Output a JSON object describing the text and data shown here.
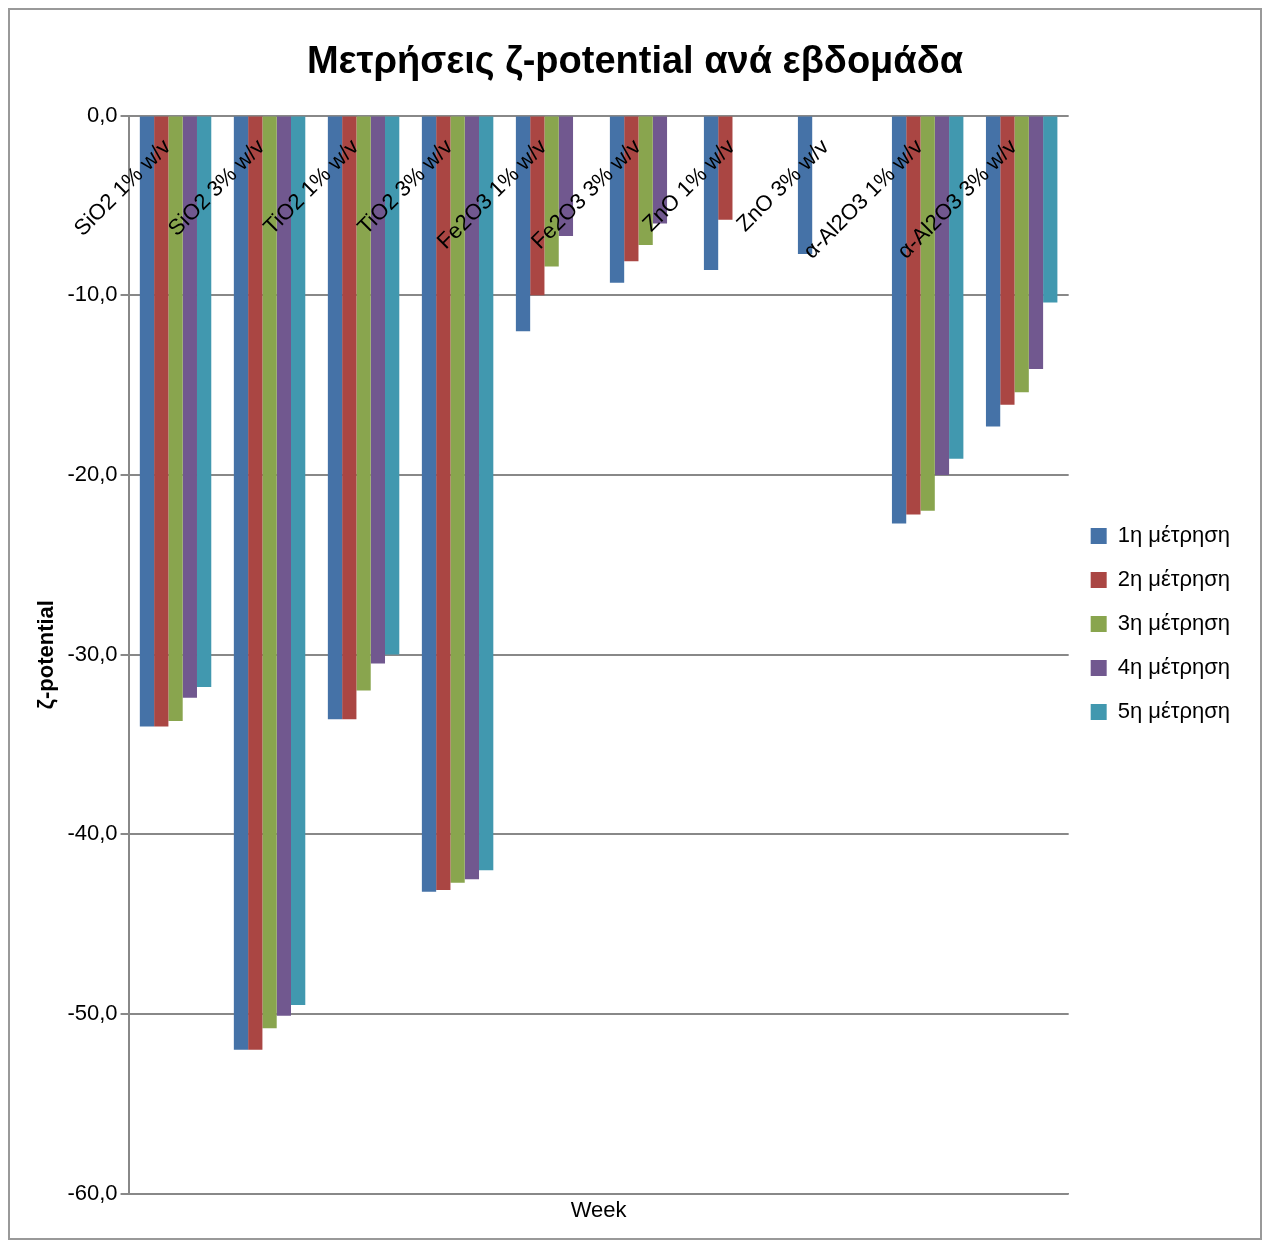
{
  "chart_data": {
    "type": "bar",
    "title": "Μετρήσεις ζ-potential ανά εβδομάδα",
    "xlabel": "Week",
    "ylabel": "ζ-potential",
    "categories": [
      "SiO2 1% w/v",
      "SiO2 3% w/v",
      "TiO2 1% w/v",
      "TiO2 3% w/v",
      "Fe2O3 1% w/v",
      "Fe2O3 3% w/v",
      "ZnO 1% w/v",
      "ZnO 3% w/v",
      "α-Al2O3 1% w/v",
      "α-Al2O3 3% w/v"
    ],
    "series": [
      {
        "name": "1η μέτρηση",
        "color": "#4572a7",
        "values": [
          -34.0,
          -52.0,
          -33.6,
          -43.2,
          -12.0,
          -9.3,
          -8.6,
          -7.7,
          -22.7,
          -17.3
        ]
      },
      {
        "name": "2η μέτρηση",
        "color": "#aa4643",
        "values": [
          -34.0,
          -52.0,
          -33.6,
          -43.1,
          -10.0,
          -8.1,
          -5.8,
          null,
          -22.2,
          -16.1
        ]
      },
      {
        "name": "3η μέτρηση",
        "color": "#89a54e",
        "values": [
          -33.7,
          -50.8,
          -32.0,
          -42.7,
          -8.4,
          -7.2,
          null,
          null,
          -22.0,
          -15.4
        ]
      },
      {
        "name": "4η μέτρηση",
        "color": "#71588f",
        "values": [
          -32.4,
          -50.1,
          -30.5,
          -42.5,
          -6.7,
          -6.0,
          null,
          null,
          -20.0,
          -14.1
        ]
      },
      {
        "name": "5η μέτρηση",
        "color": "#4198af",
        "values": [
          -31.8,
          -49.5,
          -30.0,
          -42.0,
          null,
          null,
          null,
          null,
          -19.1,
          -10.4
        ]
      }
    ],
    "ylim": [
      -60,
      0
    ],
    "yticks": [
      {
        "value": 0,
        "label": "0,0"
      },
      {
        "value": -10,
        "label": "-10,0"
      },
      {
        "value": -20,
        "label": "-20,0"
      },
      {
        "value": -30,
        "label": "-30,0"
      },
      {
        "value": -40,
        "label": "-40,0"
      },
      {
        "value": -50,
        "label": "-50,0"
      },
      {
        "value": -60,
        "label": "-60,0"
      }
    ],
    "grid": "y",
    "legend": "right"
  }
}
